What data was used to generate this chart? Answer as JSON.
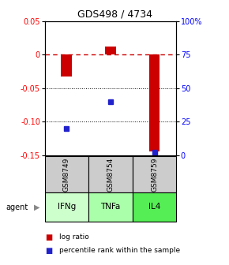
{
  "title": "GDS498 / 4734",
  "samples": [
    "GSM8749",
    "GSM8754",
    "GSM8759"
  ],
  "agents": [
    "IFNg",
    "TNFa",
    "IL4"
  ],
  "log_ratios": [
    -0.033,
    0.012,
    -0.145
  ],
  "percentile_ranks": [
    20,
    40,
    2
  ],
  "ylim_left": [
    -0.15,
    0.05
  ],
  "ylim_right": [
    0,
    100
  ],
  "yticks_left": [
    0.05,
    0.0,
    -0.05,
    -0.1,
    -0.15
  ],
  "yticks_right": [
    100,
    75,
    50,
    25,
    0
  ],
  "bar_color": "#cc0000",
  "dot_color": "#2222cc",
  "zero_line_color": "#cc0000",
  "grid_color": "#000000",
  "sample_bg": "#cccccc",
  "agent_colors": [
    "#ccffcc",
    "#aaffaa",
    "#55ee55"
  ],
  "legend_bar_label": "log ratio",
  "legend_dot_label": "percentile rank within the sample",
  "agent_label": "agent",
  "bar_width": 0.25
}
